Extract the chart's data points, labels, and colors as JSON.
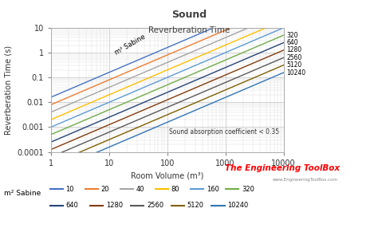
{
  "title": "Sound",
  "subtitle": "Reverberation Time",
  "xlabel": "Room Volume (m³)",
  "ylabel": "Reverberation Time (s)",
  "annotation": "Sound absorption coefficient < 0.35",
  "sabine_label": "m² Sabine",
  "watermark": "The Engineering ToolBox",
  "watermark_url": "www.EngineeringToolBox.com",
  "xlim": [
    1,
    10000
  ],
  "ylim": [
    0.0001,
    10
  ],
  "sabine_values": [
    10,
    20,
    40,
    80,
    160,
    320,
    640,
    1280,
    2560,
    5120,
    10240
  ],
  "line_colors": {
    "10": "#4472C4",
    "20": "#ED7D31",
    "40": "#A5A5A5",
    "80": "#FFC000",
    "160": "#5B9BD5",
    "320": "#70AD47",
    "640": "#264478",
    "1280": "#843C0C",
    "2560": "#595959",
    "5120": "#806000",
    "10240": "#2F75B6"
  },
  "background_color": "#FFFFFF",
  "plot_bg_color": "#FFFFFF",
  "grid_color": "#C0C0C0",
  "title_color": "#404040",
  "subtitle_color": "#404040"
}
